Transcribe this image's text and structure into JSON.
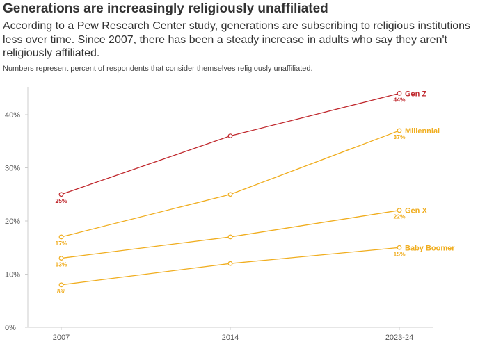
{
  "header": {
    "title": "Generations are increasingly religiously unaffiliated",
    "subtitle": "According to a Pew Research Center study, generations are subscribing to religious institutions less over time. Since 2007, there has been a steady increase in adults who say they aren't religiously affiliated.",
    "note": "Numbers represent percent of respondents that consider themselves religiously unaffiliated."
  },
  "chart_data": {
    "type": "line",
    "title": "Generations are increasingly religiously unaffiliated",
    "xlabel": "",
    "ylabel": "",
    "x": [
      "2007",
      "2014",
      "2023-24"
    ],
    "ylim": [
      0,
      45
    ],
    "yticks": [
      0,
      10,
      20,
      30,
      40
    ],
    "ytick_labels": [
      "0%",
      "10%",
      "20%",
      "30%",
      "40%"
    ],
    "grid": false,
    "legend": "direct labels at line ends",
    "series": [
      {
        "name": "Gen Z",
        "values": [
          25,
          36,
          44
        ],
        "labels": [
          "25%",
          null,
          "44%"
        ],
        "color": "#c0282d"
      },
      {
        "name": "Millennial",
        "values": [
          17,
          25,
          37
        ],
        "labels": [
          "17%",
          null,
          "37%"
        ],
        "color": "#f0ad1e"
      },
      {
        "name": "Gen X",
        "values": [
          13,
          17,
          22
        ],
        "labels": [
          "13%",
          null,
          "22%"
        ],
        "color": "#f0ad1e"
      },
      {
        "name": "Baby Boomer",
        "values": [
          8,
          12,
          15
        ],
        "labels": [
          "8%",
          null,
          "15%"
        ],
        "color": "#f0ad1e"
      }
    ]
  }
}
